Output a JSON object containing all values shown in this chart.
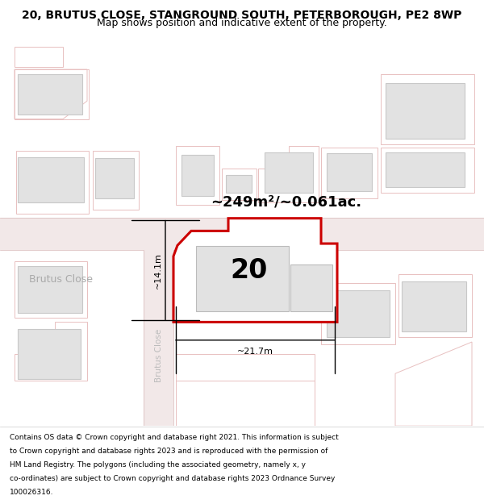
{
  "title": "20, BRUTUS CLOSE, STANGROUND SOUTH, PETERBOROUGH, PE2 8WP",
  "subtitle": "Map shows position and indicative extent of the property.",
  "footer_lines": [
    "Contains OS data © Crown copyright and database right 2021. This information is subject",
    "to Crown copyright and database rights 2023 and is reproduced with the permission of",
    "HM Land Registry. The polygons (including the associated geometry, namely x, y",
    "co-ordinates) are subject to Crown copyright and database rights 2023 Ordnance Survey",
    "100026316."
  ],
  "map_bg": "#f7f2f2",
  "road_color": "#e8c0c0",
  "building_fill": "#e2e2e2",
  "building_edge": "#c8c8c8",
  "highlight_color": "#cc0000",
  "area_text": "~249m²/~0.061ac.",
  "property_number": "20",
  "dim_width": "~21.7m",
  "dim_height": "~14.1m",
  "street_label_1": "Brutus Close",
  "street_label_2": "Brutus Close",
  "street_label_3": "Brutus Close",
  "title_fontsize": 10,
  "subtitle_fontsize": 9,
  "footer_fontsize": 6.5
}
